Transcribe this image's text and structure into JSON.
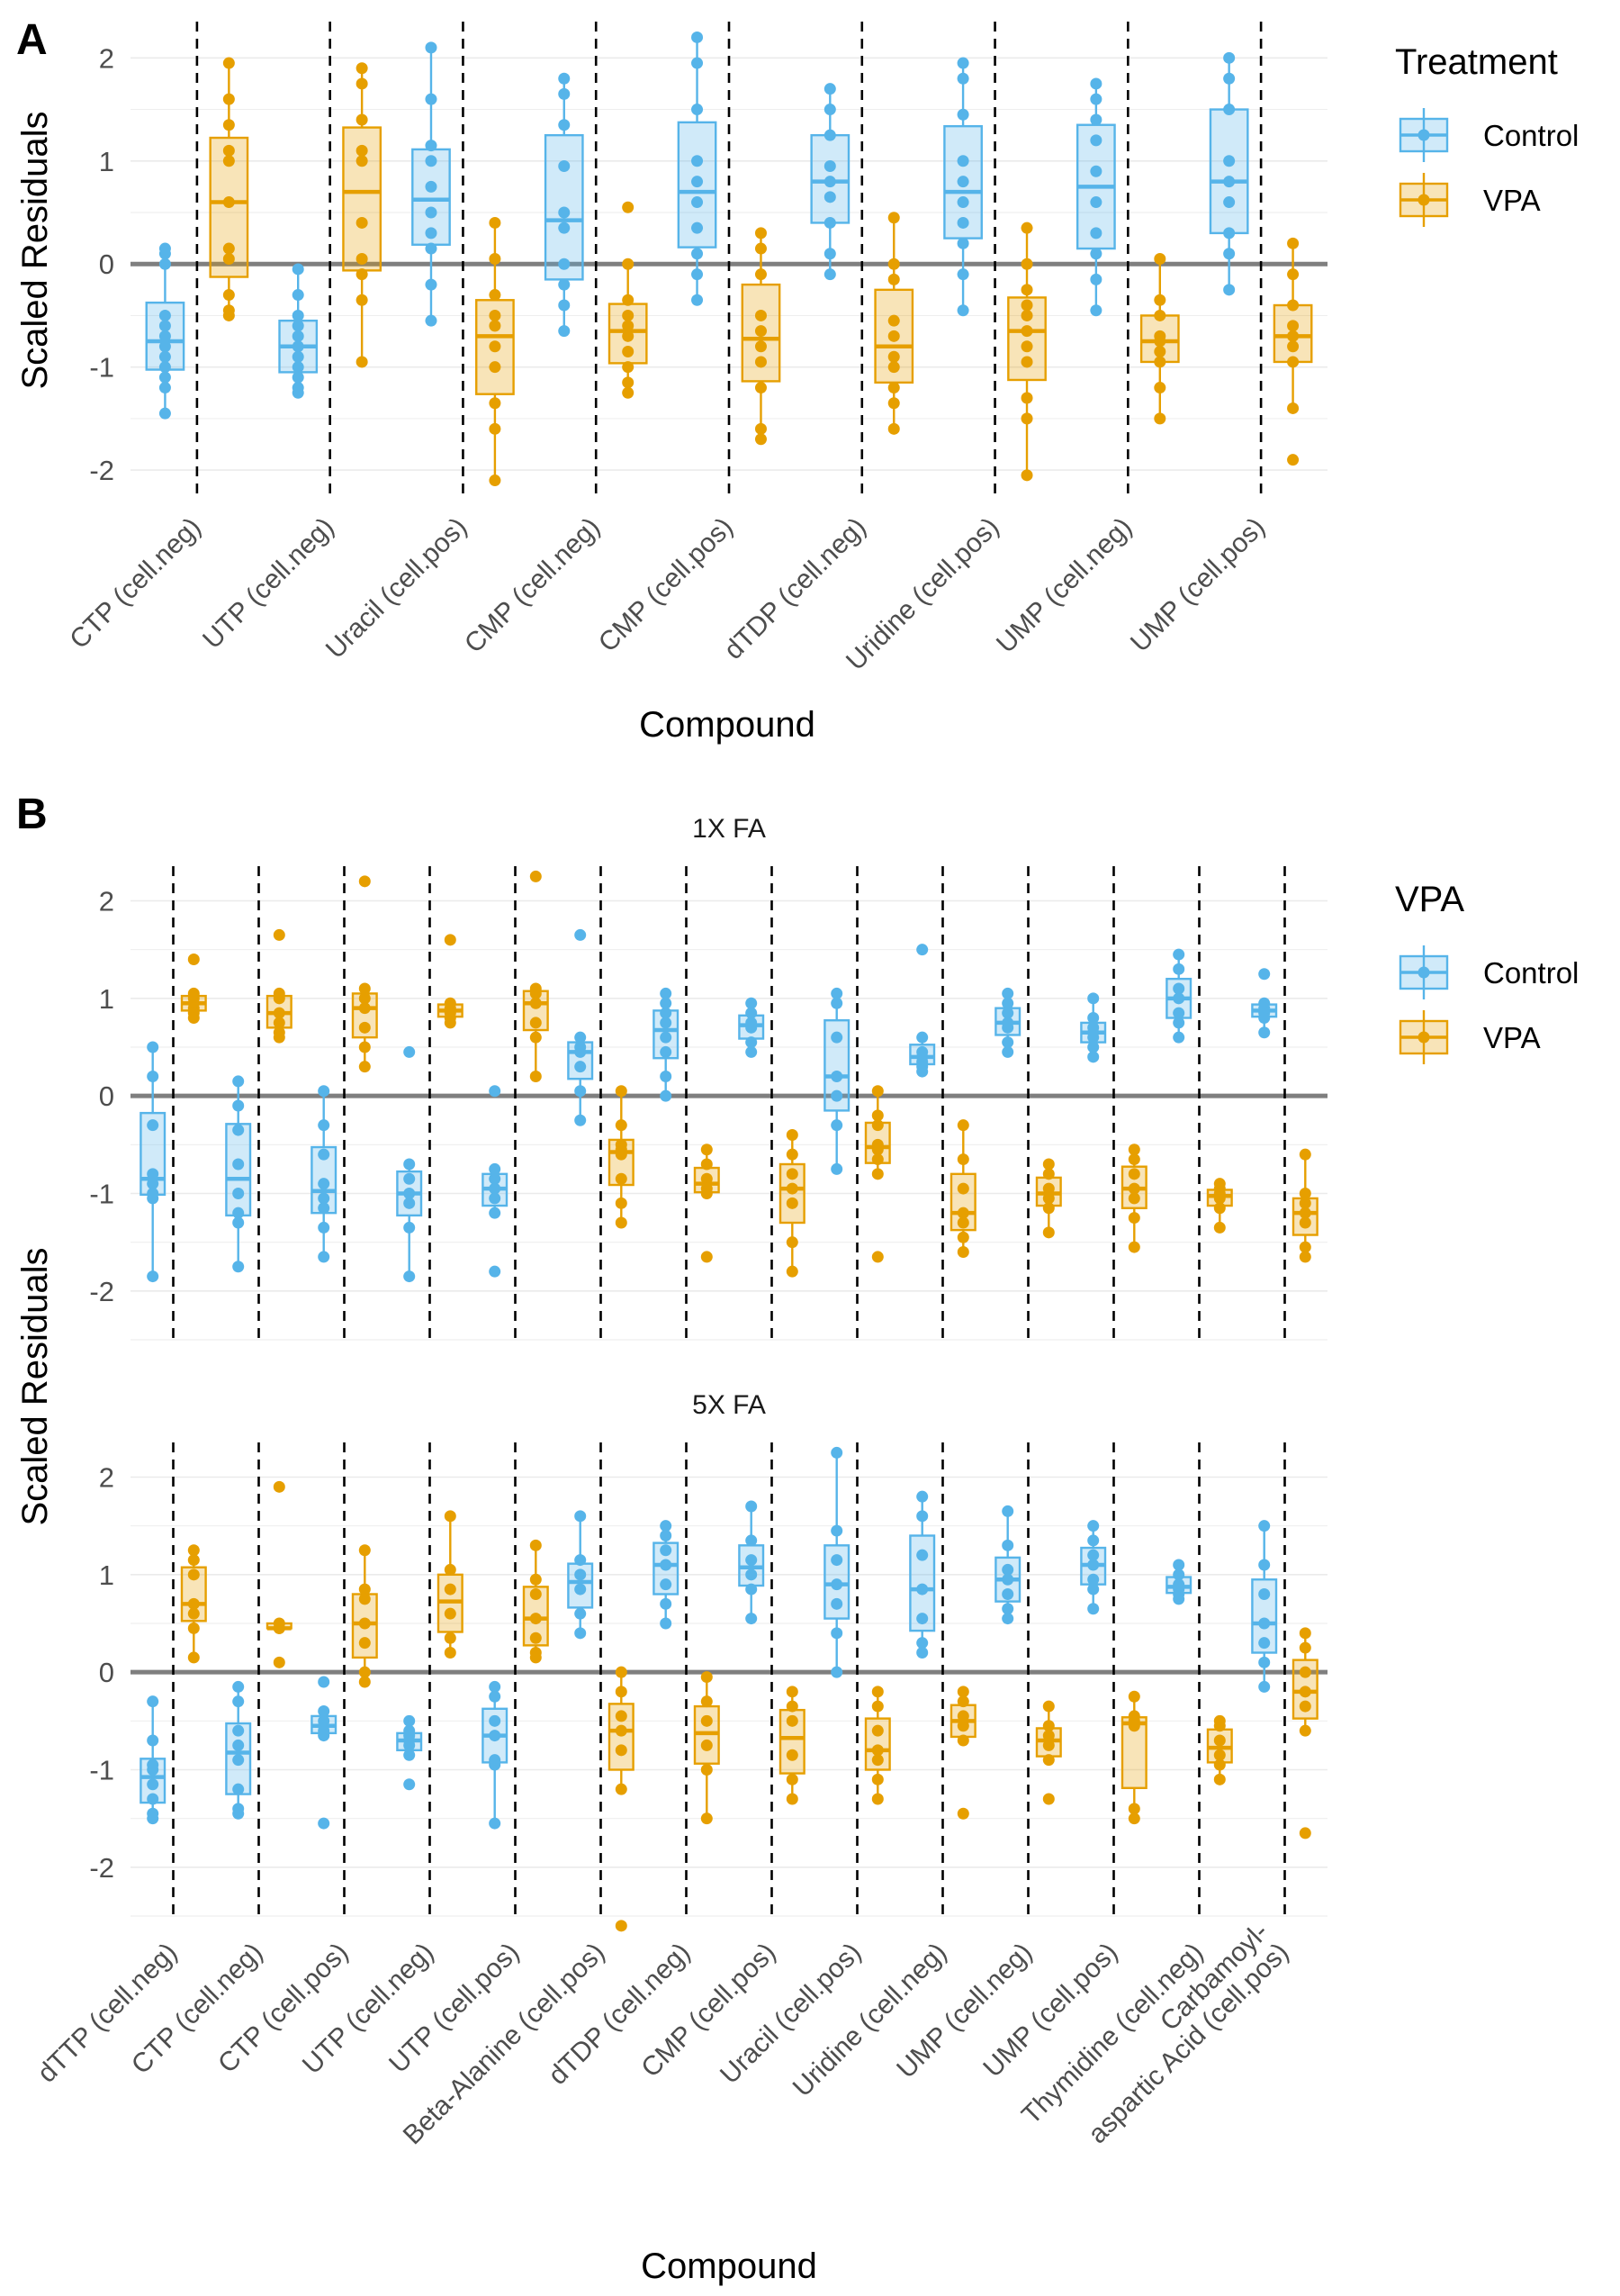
{
  "colors": {
    "control": "#56B4E9",
    "vpa": "#E69F00",
    "zero_line": "#7f7f7f",
    "grid": "#ebebeb",
    "divider": "#000000"
  },
  "panel_a": {
    "letter": "A",
    "xlabel": "Compound",
    "ylabel": "Scaled Residuals",
    "legend": {
      "title": "Treatment",
      "items": [
        "Control",
        "VPA"
      ]
    }
  },
  "panel_b": {
    "letter": "B",
    "xlabel": "Compound",
    "ylabel": "Scaled Residuals",
    "legend": {
      "title": "VPA",
      "items": [
        "Control",
        "VPA"
      ]
    },
    "facets": [
      "1X FA",
      "5X FA"
    ]
  },
  "chart_data": [
    {
      "id": "A",
      "type": "box",
      "title": "",
      "xlabel": "Compound",
      "ylabel": "Scaled Residuals",
      "ylim": [
        -2.2,
        2.3
      ],
      "yticks": [
        -2,
        -1,
        0,
        1,
        2
      ],
      "grid": true,
      "legend_position": "right",
      "legend_title": "Treatment",
      "categories": [
        "CTP (cell.neg)",
        "UTP (cell.neg)",
        "Uracil (cell.pos)",
        "CMP (cell.neg)",
        "CMP (cell.pos)",
        "dTDP (cell.neg)",
        "Uridine (cell.pos)",
        "UMP (cell.neg)",
        "UMP (cell.pos)"
      ],
      "series": [
        {
          "name": "Control",
          "points": [
            [
              0.15,
              0.1,
              0.0,
              -0.5,
              -0.6,
              -0.7,
              -0.8,
              -0.9,
              -1.0,
              -1.1,
              -1.2,
              -1.45
            ],
            [
              -0.05,
              -0.3,
              -0.5,
              -0.6,
              -0.7,
              -0.8,
              -0.9,
              -1.0,
              -1.1,
              -1.2,
              -1.25
            ],
            [
              2.1,
              1.6,
              1.15,
              1.0,
              0.75,
              0.5,
              0.3,
              0.15,
              -0.2,
              -0.55
            ],
            [
              1.8,
              1.65,
              1.35,
              0.95,
              0.5,
              0.35,
              0.0,
              -0.2,
              -0.4,
              -0.65
            ],
            [
              2.2,
              1.95,
              1.5,
              1.0,
              0.8,
              0.6,
              0.35,
              0.1,
              -0.1,
              -0.35
            ],
            [
              1.7,
              1.5,
              1.25,
              0.95,
              0.8,
              0.65,
              0.4,
              0.1,
              -0.1
            ],
            [
              1.95,
              1.8,
              1.45,
              1.0,
              0.8,
              0.6,
              0.4,
              0.2,
              -0.1,
              -0.45
            ],
            [
              1.75,
              1.6,
              1.4,
              1.2,
              0.9,
              0.6,
              0.3,
              0.1,
              -0.15,
              -0.45
            ],
            [
              2.0,
              1.8,
              1.5,
              1.0,
              0.8,
              0.6,
              0.3,
              0.1,
              -0.25
            ]
          ]
        },
        {
          "name": "VPA",
          "points": [
            [
              1.95,
              1.6,
              1.35,
              1.1,
              1.0,
              0.6,
              0.15,
              0.05,
              -0.3,
              -0.45,
              -0.5
            ],
            [
              1.9,
              1.75,
              1.4,
              1.1,
              1.0,
              0.4,
              0.05,
              -0.1,
              -0.35,
              -0.95
            ],
            [
              0.4,
              0.05,
              -0.3,
              -0.5,
              -0.6,
              -0.8,
              -1.0,
              -1.35,
              -1.6,
              -2.1
            ],
            [
              0.55,
              0.0,
              -0.35,
              -0.5,
              -0.6,
              -0.7,
              -0.85,
              -1.0,
              -1.15,
              -1.25
            ],
            [
              0.3,
              0.15,
              -0.1,
              -0.5,
              -0.65,
              -0.8,
              -0.95,
              -1.2,
              -1.6,
              -1.7
            ],
            [
              0.45,
              0.0,
              -0.15,
              -0.55,
              -0.7,
              -0.9,
              -1.0,
              -1.2,
              -1.35,
              -1.6
            ],
            [
              0.35,
              0.0,
              -0.25,
              -0.4,
              -0.5,
              -0.65,
              -0.8,
              -0.95,
              -1.3,
              -1.5,
              -2.05
            ],
            [
              0.05,
              -0.35,
              -0.5,
              -0.7,
              -0.75,
              -0.85,
              -0.95,
              -1.2,
              -1.5
            ],
            [
              0.2,
              -0.1,
              -0.4,
              -0.6,
              -0.7,
              -0.8,
              -0.95,
              -1.4,
              -1.9
            ]
          ]
        }
      ]
    },
    {
      "id": "B-1X FA",
      "type": "box",
      "title": "1X FA",
      "xlabel": "Compound",
      "ylabel": "Scaled Residuals",
      "ylim": [
        -2.5,
        2.3
      ],
      "yticks": [
        -2,
        -1,
        0,
        1,
        2
      ],
      "grid": true,
      "legend_position": "right",
      "legend_title": "VPA",
      "categories": [
        "dTTP (cell.neg)",
        "CTP (cell.neg)",
        "CTP (cell.pos)",
        "UTP (cell.neg)",
        "UTP (cell.pos)",
        "Beta-Alanine (cell.pos)",
        "dTDP (cell.neg)",
        "CMP (cell.pos)",
        "Uracil (cell.pos)",
        "Uridine (cell.neg)",
        "UMP (cell.neg)",
        "UMP (cell.pos)",
        "Thymidine (cell.neg)",
        "Carbamoyl-aspartic Acid (cell.pos)"
      ],
      "series": [
        {
          "name": "Control",
          "points": [
            [
              0.5,
              0.2,
              -0.3,
              -0.8,
              -0.9,
              -1.0,
              -1.05,
              -1.85
            ],
            [
              0.15,
              -0.1,
              -0.35,
              -0.7,
              -1.0,
              -1.2,
              -1.3,
              -1.75
            ],
            [
              0.05,
              -0.3,
              -0.6,
              -0.9,
              -1.05,
              -1.15,
              -1.35,
              -1.65
            ],
            [
              0.45,
              -0.7,
              -0.85,
              -1.0,
              -1.1,
              -1.35,
              -1.85
            ],
            [
              0.05,
              -0.75,
              -0.85,
              -0.95,
              -1.05,
              -1.2,
              -1.8
            ],
            [
              1.65,
              0.6,
              0.5,
              0.45,
              0.3,
              0.05,
              -0.25
            ],
            [
              1.05,
              0.95,
              0.85,
              0.75,
              0.6,
              0.45,
              0.2,
              0.0
            ],
            [
              0.95,
              0.85,
              0.75,
              0.7,
              0.55,
              0.45
            ],
            [
              1.05,
              0.95,
              0.6,
              0.2,
              0.0,
              -0.3,
              -0.75
            ],
            [
              1.5,
              0.6,
              0.45,
              0.4,
              0.35,
              0.3,
              0.25
            ],
            [
              1.05,
              0.95,
              0.85,
              0.75,
              0.7,
              0.55,
              0.45
            ],
            [
              1.0,
              0.8,
              0.7,
              0.65,
              0.6,
              0.5,
              0.4
            ],
            [
              1.45,
              1.3,
              1.1,
              1.0,
              0.85,
              0.75,
              0.6
            ],
            [
              1.25,
              0.95,
              0.9,
              0.85,
              0.8,
              0.65
            ]
          ]
        },
        {
          "name": "VPA",
          "points": [
            [
              1.4,
              1.05,
              1.0,
              0.95,
              0.9,
              0.85,
              0.8
            ],
            [
              1.65,
              1.05,
              1.0,
              0.85,
              0.75,
              0.65,
              0.6
            ],
            [
              2.2,
              1.1,
              1.0,
              0.9,
              0.7,
              0.5,
              0.3
            ],
            [
              1.6,
              0.95,
              0.9,
              0.85,
              0.8,
              0.75
            ],
            [
              2.25,
              1.1,
              1.05,
              0.95,
              0.75,
              0.6,
              0.2
            ],
            [
              0.05,
              -0.3,
              -0.5,
              -0.55,
              -0.6,
              -0.85,
              -1.1,
              -1.3
            ],
            [
              -0.55,
              -0.7,
              -0.85,
              -0.95,
              -1.0,
              -1.65
            ],
            [
              -0.4,
              -0.6,
              -0.8,
              -0.95,
              -1.1,
              -1.5,
              -1.8
            ],
            [
              0.05,
              -0.2,
              -0.3,
              -0.5,
              -0.55,
              -0.65,
              -0.8,
              -1.65
            ],
            [
              -0.3,
              -0.65,
              -0.95,
              -1.2,
              -1.3,
              -1.45,
              -1.6
            ],
            [
              -0.7,
              -0.8,
              -0.95,
              -1.05,
              -1.15,
              -1.4
            ],
            [
              -0.55,
              -0.65,
              -0.8,
              -0.95,
              -1.05,
              -1.25,
              -1.55
            ],
            [
              -0.9,
              -0.95,
              -1.0,
              -1.05,
              -1.15,
              -1.35
            ],
            [
              -0.6,
              -1.0,
              -1.1,
              -1.2,
              -1.3,
              -1.55,
              -1.65
            ]
          ]
        }
      ]
    },
    {
      "id": "B-5X FA",
      "type": "box",
      "title": "5X FA",
      "xlabel": "Compound",
      "ylabel": "Scaled Residuals",
      "ylim": [
        -2.5,
        2.3
      ],
      "yticks": [
        -2,
        -1,
        0,
        1,
        2
      ],
      "grid": true,
      "legend_position": "right",
      "legend_title": "VPA",
      "categories": [
        "dTTP (cell.neg)",
        "CTP (cell.neg)",
        "CTP (cell.pos)",
        "UTP (cell.neg)",
        "UTP (cell.pos)",
        "Beta-Alanine (cell.pos)",
        "dTDP (cell.neg)",
        "CMP (cell.pos)",
        "Uracil (cell.pos)",
        "Uridine (cell.neg)",
        "UMP (cell.neg)",
        "UMP (cell.pos)",
        "Thymidine (cell.neg)",
        "Carbamoyl-aspartic Acid (cell.pos)"
      ],
      "series": [
        {
          "name": "Control",
          "points": [
            [
              -0.3,
              -0.7,
              -0.95,
              -1.0,
              -1.15,
              -1.3,
              -1.45,
              -1.5
            ],
            [
              -0.15,
              -0.3,
              -0.6,
              -0.75,
              -0.9,
              -1.2,
              -1.4,
              -1.45
            ],
            [
              -0.1,
              -0.4,
              -0.5,
              -0.55,
              -0.6,
              -0.65,
              -1.55
            ],
            [
              -0.5,
              -0.6,
              -0.65,
              -0.7,
              -0.75,
              -0.85,
              -1.15
            ],
            [
              -0.15,
              -0.25,
              -0.5,
              -0.65,
              -0.9,
              -0.95,
              -1.55
            ],
            [
              1.6,
              1.15,
              1.0,
              0.85,
              0.6,
              0.4
            ],
            [
              1.5,
              1.4,
              1.25,
              1.1,
              0.9,
              0.7,
              0.5
            ],
            [
              1.7,
              1.35,
              1.15,
              1.0,
              0.85,
              0.55
            ],
            [
              2.25,
              1.45,
              1.15,
              0.9,
              0.7,
              0.4,
              0.0
            ],
            [
              1.8,
              1.6,
              1.2,
              0.85,
              0.55,
              0.3,
              0.2
            ],
            [
              1.65,
              1.3,
              1.05,
              0.95,
              0.8,
              0.65,
              0.55
            ],
            [
              1.5,
              1.35,
              1.2,
              1.1,
              0.95,
              0.85,
              0.65
            ],
            [
              1.1,
              1.0,
              0.9,
              0.85,
              0.8,
              0.75
            ],
            [
              1.5,
              1.1,
              0.8,
              0.5,
              0.3,
              0.1,
              -0.15
            ]
          ]
        },
        {
          "name": "VPA",
          "points": [
            [
              1.25,
              1.15,
              1.0,
              0.7,
              0.6,
              0.45,
              0.15
            ],
            [
              1.9,
              0.5,
              0.45,
              0.45,
              0.1
            ],
            [
              1.25,
              0.85,
              0.75,
              0.5,
              0.3,
              0.0,
              -0.1
            ],
            [
              1.6,
              1.05,
              0.85,
              0.6,
              0.35,
              0.2
            ],
            [
              1.3,
              0.95,
              0.8,
              0.55,
              0.35,
              0.2,
              0.15
            ],
            [
              0.0,
              -0.2,
              -0.45,
              -0.6,
              -0.8,
              -1.2,
              -2.6
            ],
            [
              -0.05,
              -0.3,
              -0.5,
              -0.75,
              -1.0,
              -1.5
            ],
            [
              -0.2,
              -0.35,
              -0.5,
              -0.85,
              -1.1,
              -1.3
            ],
            [
              -0.2,
              -0.35,
              -0.6,
              -0.8,
              -0.9,
              -1.1,
              -1.3
            ],
            [
              -0.2,
              -0.3,
              -0.45,
              -0.55,
              -0.7,
              -1.45
            ],
            [
              -0.35,
              -0.55,
              -0.65,
              -0.75,
              -0.9,
              -1.3
            ],
            [
              -0.25,
              -0.45,
              -0.5,
              -0.55,
              -1.4,
              -1.5
            ],
            [
              -0.5,
              -0.55,
              -0.7,
              -0.85,
              -0.95,
              -1.1
            ],
            [
              0.4,
              0.25,
              0.0,
              -0.2,
              -0.35,
              -0.6,
              -1.65
            ]
          ]
        }
      ]
    }
  ]
}
